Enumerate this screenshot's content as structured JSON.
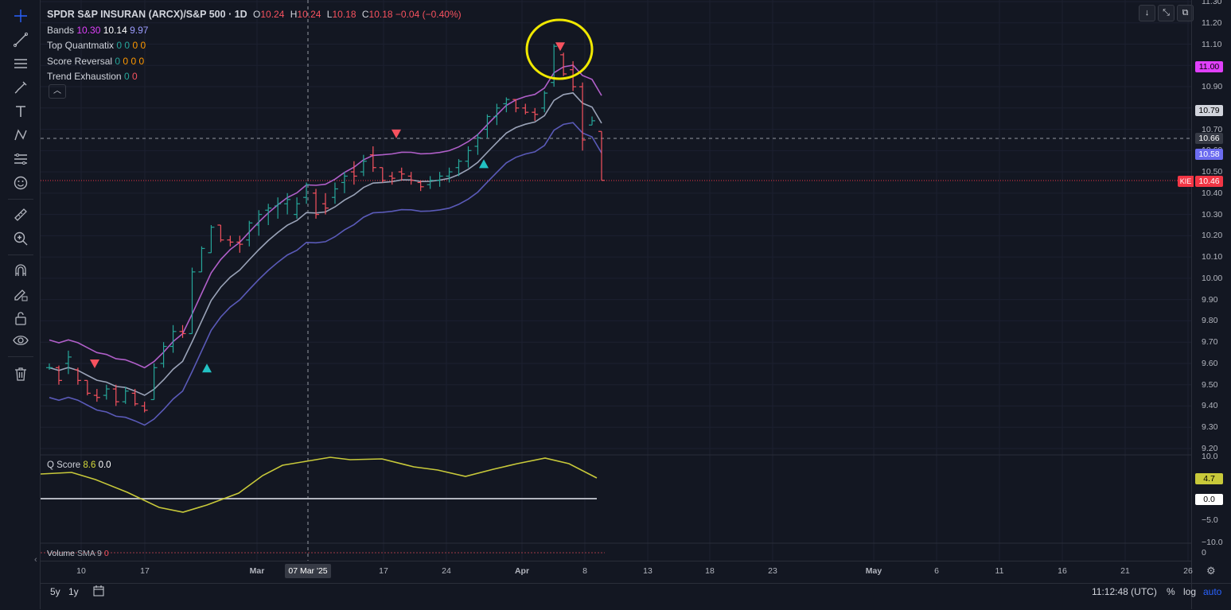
{
  "symbol": {
    "title": "SPDR S&P INSURAN (ARCX)/S&P 500 · 1D",
    "o_label": "O",
    "o": "10.24",
    "h_label": "H",
    "h": "10.24",
    "l_label": "L",
    "l": "10.18",
    "c_label": "C",
    "c": "10.18",
    "change": "−0.04 (−0.40%)"
  },
  "indicators": [
    {
      "name": "Bands",
      "values": [
        "10.30",
        "10.14",
        "9.97"
      ]
    },
    {
      "name": "Top Quantmatix",
      "values": [
        "0",
        "0",
        "0",
        "0"
      ]
    },
    {
      "name": "Score Reversal",
      "values": [
        "0",
        "0",
        "0",
        "0"
      ]
    },
    {
      "name": "Trend Exhaustion",
      "values": [
        "0",
        "0"
      ]
    }
  ],
  "colors": {
    "background": "#131722",
    "up": "#26a69a",
    "down": "#f7525f",
    "band_upper": "#b05fc9",
    "band_mid": "#9aa3b8",
    "band_lower": "#5a5ab8",
    "qscore": "#c8c93a",
    "highlight_circle": "#f0e800"
  },
  "price_axis": {
    "ticks": [
      "11.30",
      "11.20",
      "11.10",
      "10.90",
      "10.80",
      "10.70",
      "10.60",
      "10.50",
      "10.40",
      "10.30",
      "10.20",
      "10.10",
      "10.00",
      "9.90",
      "9.80",
      "9.70",
      "9.60",
      "9.50",
      "9.40",
      "9.30",
      "9.20"
    ],
    "badges": {
      "upper": "11.00",
      "mid": "10.79",
      "crosshair": "10.66",
      "lower": "10.58",
      "last": "10.46",
      "last_label": "KIE"
    }
  },
  "qscore_pane": {
    "title": "Q Score",
    "v1": "8.6",
    "v2": "0.0",
    "ticks": [
      "10.0",
      "−5.0",
      "−10.0"
    ],
    "badges": {
      "value": "4.7",
      "zero": "0.0"
    }
  },
  "volume_pane": {
    "title": "Volume",
    "sub": "SMA 9",
    "value": "0",
    "tick": "0"
  },
  "time_axis": {
    "labels": [
      {
        "t": "10",
        "bold": false
      },
      {
        "t": "17",
        "bold": false
      },
      {
        "t": "Mar",
        "bold": true
      },
      {
        "t": "17",
        "bold": false
      },
      {
        "t": "24",
        "bold": false
      },
      {
        "t": "Apr",
        "bold": true
      },
      {
        "t": "8",
        "bold": false
      },
      {
        "t": "13",
        "bold": false
      },
      {
        "t": "18",
        "bold": false
      },
      {
        "t": "23",
        "bold": false
      },
      {
        "t": "May",
        "bold": true
      },
      {
        "t": "6",
        "bold": false
      },
      {
        "t": "11",
        "bold": false
      },
      {
        "t": "16",
        "bold": false
      },
      {
        "t": "21",
        "bold": false
      },
      {
        "t": "26",
        "bold": false
      }
    ],
    "crosshair_date": "07 Mar '25"
  },
  "bottom_bar": {
    "range_5y": "5y",
    "range_1y": "1y",
    "time": "11:12:48 (UTC)",
    "pct": "%",
    "log": "log",
    "auto": "auto"
  },
  "chart_data": {
    "type": "bar",
    "subtype": "ohlc",
    "ylim": [
      9.2,
      11.3
    ],
    "bars": [
      [
        9.58,
        9.6,
        9.57,
        9.58
      ],
      [
        9.58,
        9.59,
        9.5,
        9.52
      ],
      [
        9.6,
        9.66,
        9.55,
        9.63
      ],
      [
        9.57,
        9.58,
        9.5,
        9.52
      ],
      [
        9.52,
        9.52,
        9.45,
        9.46
      ],
      [
        9.45,
        9.48,
        9.42,
        9.44
      ],
      [
        9.45,
        9.5,
        9.43,
        9.48
      ],
      [
        9.48,
        9.5,
        9.4,
        9.42
      ],
      [
        9.42,
        9.49,
        9.41,
        9.47
      ],
      [
        9.46,
        9.48,
        9.4,
        9.41
      ],
      [
        9.4,
        9.42,
        9.37,
        9.38
      ],
      [
        9.43,
        9.6,
        9.43,
        9.58
      ],
      [
        9.6,
        9.7,
        9.58,
        9.68
      ],
      [
        9.68,
        9.78,
        9.65,
        9.75
      ],
      [
        9.75,
        9.78,
        9.72,
        9.74
      ],
      [
        9.74,
        10.05,
        9.74,
        10.03
      ],
      [
        10.03,
        10.15,
        10.03,
        10.14
      ],
      [
        10.12,
        10.25,
        10.12,
        10.24
      ],
      [
        10.25,
        10.25,
        10.17,
        10.18
      ],
      [
        10.18,
        10.2,
        10.15,
        10.17
      ],
      [
        10.17,
        10.2,
        10.12,
        10.16
      ],
      [
        10.18,
        10.27,
        10.15,
        10.26
      ],
      [
        10.25,
        10.32,
        10.2,
        10.3
      ],
      [
        10.32,
        10.35,
        10.25,
        10.33
      ],
      [
        10.34,
        10.38,
        10.28,
        10.35
      ],
      [
        10.35,
        10.4,
        10.3,
        10.37
      ],
      [
        10.3,
        10.38,
        10.28,
        10.35
      ],
      [
        10.38,
        10.45,
        10.35,
        10.44
      ],
      [
        10.4,
        10.42,
        10.28,
        10.3
      ],
      [
        10.35,
        10.4,
        10.3,
        10.33
      ],
      [
        10.38,
        10.45,
        10.35,
        10.42
      ],
      [
        10.45,
        10.5,
        10.4,
        10.48
      ],
      [
        10.5,
        10.55,
        10.44,
        10.48
      ],
      [
        10.5,
        10.58,
        10.48,
        10.55
      ],
      [
        10.58,
        10.62,
        10.5,
        10.52
      ],
      [
        10.52,
        10.52,
        10.45,
        10.46
      ],
      [
        10.48,
        10.5,
        10.44,
        10.47
      ],
      [
        10.5,
        10.52,
        10.46,
        10.49
      ],
      [
        10.48,
        10.5,
        10.44,
        10.46
      ],
      [
        10.45,
        10.46,
        10.41,
        10.43
      ],
      [
        10.44,
        10.48,
        10.42,
        10.46
      ],
      [
        10.46,
        10.5,
        10.43,
        10.48
      ],
      [
        10.48,
        10.52,
        10.45,
        10.5
      ],
      [
        10.52,
        10.56,
        10.48,
        10.55
      ],
      [
        10.55,
        10.62,
        10.52,
        10.6
      ],
      [
        10.62,
        10.68,
        10.58,
        10.66
      ],
      [
        10.7,
        10.77,
        10.66,
        10.76
      ],
      [
        10.76,
        10.82,
        10.72,
        10.8
      ],
      [
        10.82,
        10.85,
        10.78,
        10.84
      ],
      [
        10.84,
        10.84,
        10.78,
        10.8
      ],
      [
        10.8,
        10.82,
        10.77,
        10.78
      ],
      [
        10.78,
        10.8,
        10.74,
        10.77
      ],
      [
        10.8,
        10.88,
        10.78,
        10.87
      ],
      [
        10.92,
        11.1,
        10.9,
        11.09
      ],
      [
        11.05,
        11.06,
        10.95,
        10.96
      ],
      [
        10.98,
        11.02,
        10.88,
        10.9
      ],
      [
        10.9,
        10.92,
        10.6,
        10.65
      ],
      [
        10.72,
        10.76,
        10.72,
        10.74
      ],
      [
        10.69,
        10.69,
        10.46,
        10.46
      ]
    ],
    "signals": [
      {
        "bar": 8,
        "type": "down",
        "price": 9.6
      },
      {
        "bar": 25,
        "type": "up",
        "price": 9.58
      },
      {
        "bar": 60,
        "type": "down",
        "price": 10.68
      },
      {
        "bar": 75,
        "type": "up",
        "price": 10.54
      },
      {
        "bar": 86,
        "type": "down",
        "price": 11.09
      }
    ]
  }
}
